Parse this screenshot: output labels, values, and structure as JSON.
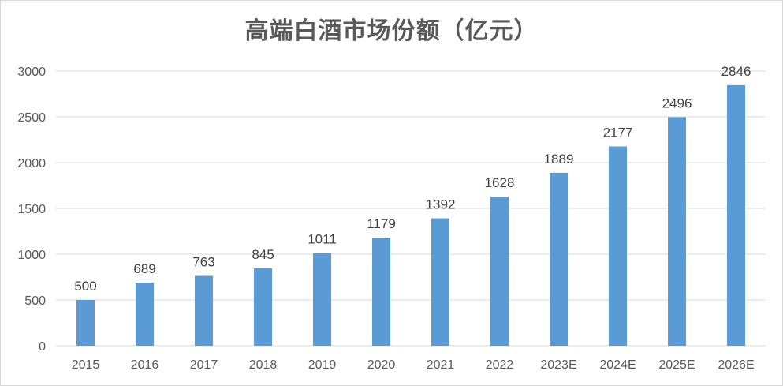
{
  "chart_data": {
    "type": "bar",
    "title": "高端白酒市场份额（亿元）",
    "categories": [
      "2015",
      "2016",
      "2017",
      "2018",
      "2019",
      "2020",
      "2021",
      "2022",
      "2023E",
      "2024E",
      "2025E",
      "2026E"
    ],
    "values": [
      500,
      689,
      763,
      845,
      1011,
      1179,
      1392,
      1628,
      1889,
      2177,
      2496,
      2846
    ],
    "ylim": [
      0,
      3000
    ],
    "yticks": [
      0,
      500,
      1000,
      1500,
      2000,
      2500,
      3000
    ],
    "grid": true,
    "legend": "none",
    "colors": {
      "bar": "#5b9bd5",
      "grid": "#d9d9d9"
    }
  }
}
